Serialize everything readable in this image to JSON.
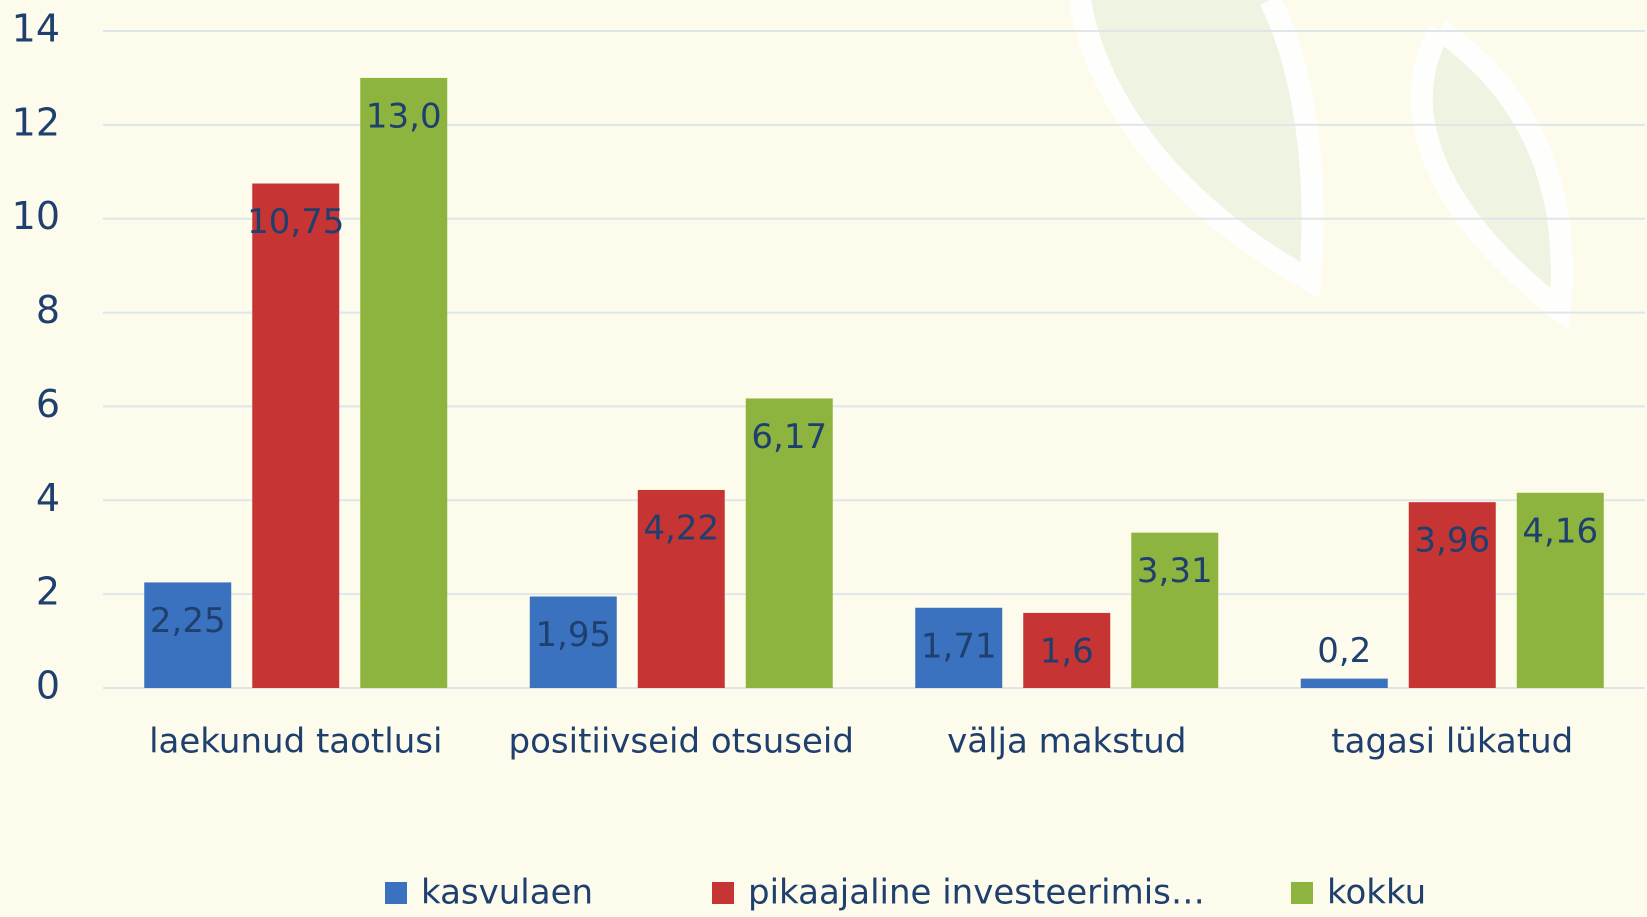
{
  "chart_data": {
    "type": "bar",
    "categories": [
      "laekunud taotlusi",
      "positiivseid otsuseid",
      "välja makstud",
      "tagasi lükatud"
    ],
    "series": [
      {
        "name": "kasvulaen",
        "color": "#3a72c0",
        "values": [
          2.25,
          1.95,
          1.71,
          0.2
        ],
        "value_labels": [
          "2,25",
          "1,95",
          "1,71",
          "0,2"
        ]
      },
      {
        "name": "pikaajaline investeerimis…",
        "color": "#c63433",
        "values": [
          10.75,
          4.22,
          1.6,
          3.96
        ],
        "value_labels": [
          "10,75",
          "4,22",
          "1,6",
          "3,96"
        ]
      },
      {
        "name": "kokku",
        "color": "#8db43e",
        "values": [
          13.0,
          6.17,
          3.31,
          4.16
        ],
        "value_labels": [
          "13,0",
          "6,17",
          "3,31",
          "4,16"
        ]
      }
    ],
    "ylim": [
      0,
      14
    ],
    "yticks": [
      0,
      2,
      4,
      6,
      8,
      10,
      12,
      14
    ],
    "grid": true,
    "legend": "bottom"
  }
}
